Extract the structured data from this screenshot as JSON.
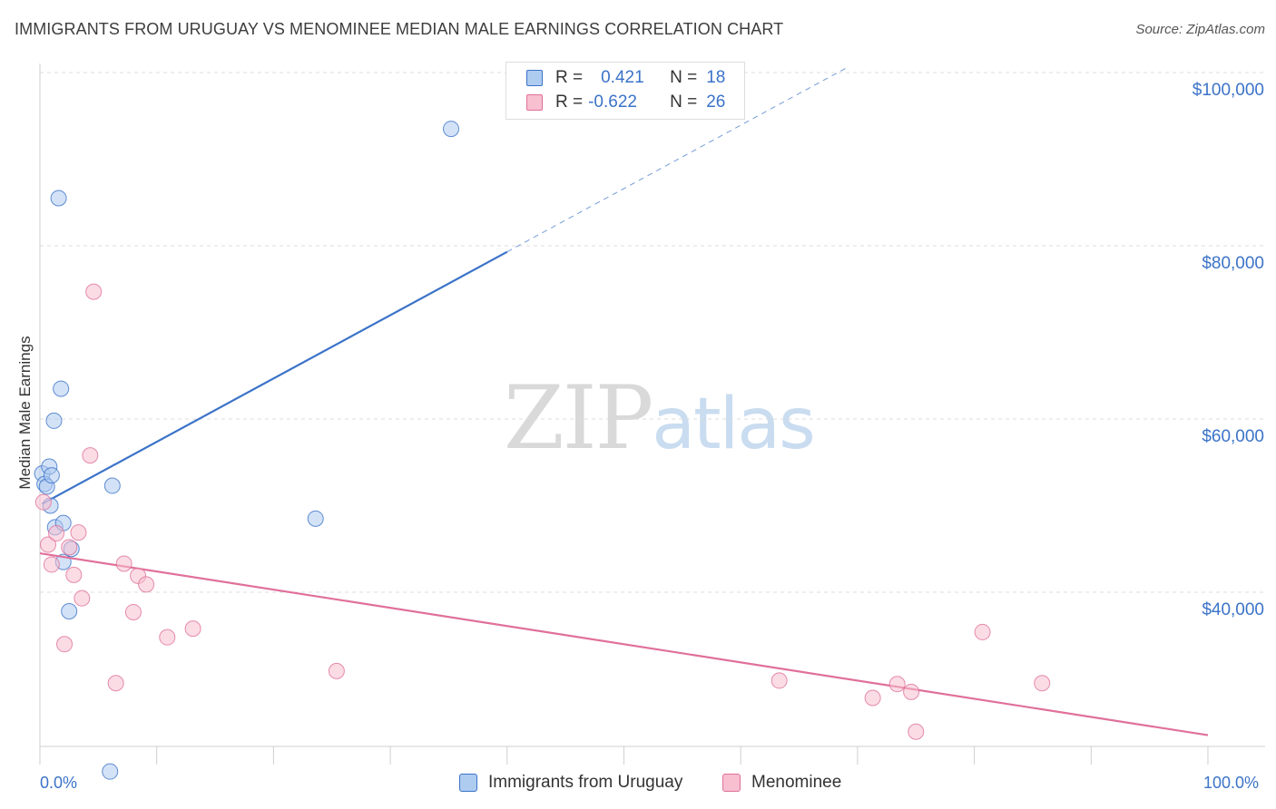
{
  "title": "IMMIGRANTS FROM URUGUAY VS MENOMINEE MEDIAN MALE EARNINGS CORRELATION CHART",
  "source": "Source: ZipAtlas.com",
  "watermark": {
    "zip": "ZIP",
    "atlas": "atlas"
  },
  "legend_stats": [
    {
      "r_label": "R =",
      "r_value": "0.421",
      "n_label": "N =",
      "n_value": "18"
    },
    {
      "r_label": "R =",
      "r_value": "-0.622",
      "n_label": "N =",
      "n_value": "26"
    }
  ],
  "chart_data": {
    "type": "scatter",
    "ylabel": "Median Male Earnings",
    "xlim": [
      0,
      100
    ],
    "ylim": [
      18000,
      102000
    ],
    "x_tick_labels": {
      "left": "0.0%",
      "right": "100.0%"
    },
    "y_ticks": [
      {
        "value": 40000,
        "label": "$40,000"
      },
      {
        "value": 60000,
        "label": "$60,000"
      },
      {
        "value": 80000,
        "label": "$80,000"
      },
      {
        "value": 100000,
        "label": "$100,000"
      }
    ],
    "grid": true,
    "legend_placement": "bottom-center",
    "series": [
      {
        "name": "Immigrants from Uruguay",
        "color": "#3b73c8",
        "fill": "#aecbf0",
        "points": [
          [
            0.2,
            53700
          ],
          [
            0.4,
            52500
          ],
          [
            0.6,
            52200
          ],
          [
            0.8,
            54500
          ],
          [
            0.9,
            50000
          ],
          [
            1.0,
            53500
          ],
          [
            1.2,
            59800
          ],
          [
            1.3,
            47500
          ],
          [
            1.6,
            85500
          ],
          [
            1.8,
            63500
          ],
          [
            2.0,
            48000
          ],
          [
            2.0,
            43500
          ],
          [
            2.5,
            37800
          ],
          [
            2.7,
            45000
          ],
          [
            6.2,
            52300
          ],
          [
            6.0,
            19300
          ],
          [
            23.6,
            48500
          ],
          [
            35.2,
            93500
          ]
        ],
        "trend": {
          "x0": 0.2,
          "y0": 50200,
          "x1": 40.0,
          "y1": 79300,
          "dash_x1": 69.0,
          "dash_y1": 100500
        }
      },
      {
        "name": "Menominee",
        "color": "#e0709a",
        "fill": "#f7bfd0",
        "points": [
          [
            0.3,
            50400
          ],
          [
            0.7,
            45500
          ],
          [
            1.0,
            43200
          ],
          [
            1.4,
            46800
          ],
          [
            2.1,
            34000
          ],
          [
            2.5,
            45200
          ],
          [
            2.9,
            42000
          ],
          [
            3.3,
            46900
          ],
          [
            3.6,
            39300
          ],
          [
            4.3,
            55800
          ],
          [
            4.6,
            74700
          ],
          [
            6.5,
            29500
          ],
          [
            7.2,
            43300
          ],
          [
            8.0,
            37700
          ],
          [
            8.4,
            41900
          ],
          [
            9.1,
            40900
          ],
          [
            10.9,
            34800
          ],
          [
            13.1,
            35800
          ],
          [
            25.4,
            30900
          ],
          [
            63.3,
            29800
          ],
          [
            71.3,
            27800
          ],
          [
            73.4,
            29400
          ],
          [
            74.6,
            28500
          ],
          [
            75.0,
            23900
          ],
          [
            80.7,
            35400
          ],
          [
            85.8,
            29500
          ]
        ],
        "trend": {
          "x0": 0.0,
          "y0": 44500,
          "x1": 100.0,
          "y1": 23500
        }
      }
    ]
  }
}
